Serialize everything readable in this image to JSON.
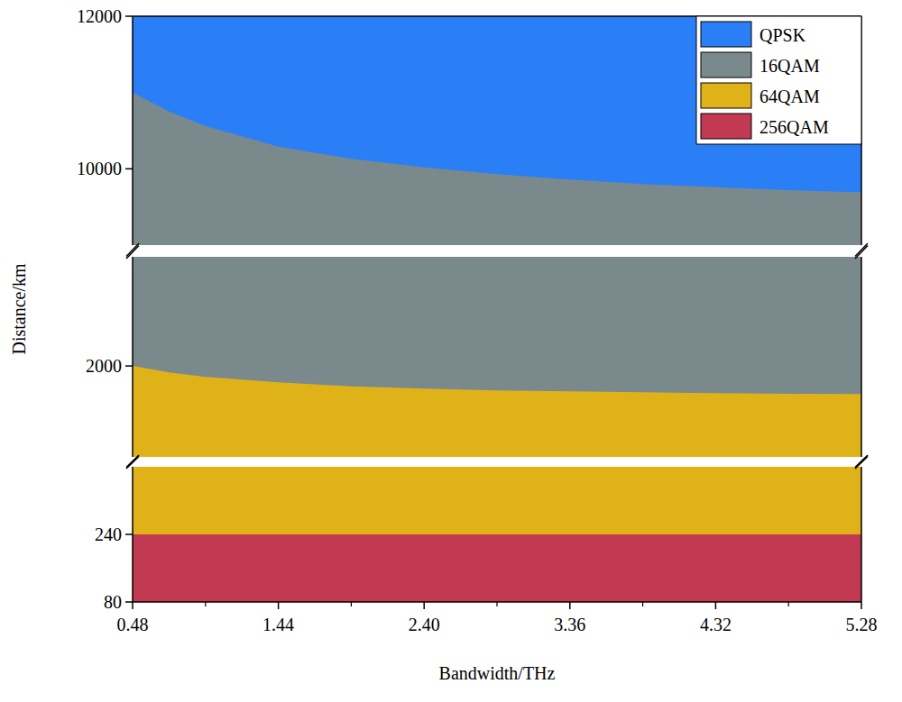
{
  "chart_data": {
    "type": "area",
    "x_label": "Bandwidth/THz",
    "y_label": "Distance/km",
    "x": [
      0.48,
      0.72,
      0.96,
      1.44,
      1.92,
      2.4,
      2.88,
      3.36,
      3.84,
      4.32,
      4.8,
      5.28
    ],
    "series": [
      {
        "name": "QPSK",
        "color": "#2b7ff6",
        "values": [
          12000,
          12000,
          12000,
          12000,
          12000,
          12000,
          12000,
          12000,
          12000,
          12000,
          12000,
          12000
        ]
      },
      {
        "name": "16QAM",
        "color": "#7a8a8c",
        "values": [
          11000,
          10750,
          10560,
          10290,
          10130,
          10020,
          9930,
          9860,
          9800,
          9760,
          9720,
          9690
        ]
      },
      {
        "name": "64QAM",
        "color": "#e0b21a",
        "values": [
          2000,
          1965,
          1940,
          1910,
          1888,
          1875,
          1866,
          1860,
          1855,
          1850,
          1847,
          1845
        ]
      },
      {
        "name": "256QAM",
        "color": "#c23a52",
        "values": [
          240,
          240,
          240,
          240,
          240,
          240,
          240,
          240,
          240,
          240,
          240,
          240
        ]
      }
    ],
    "xlim": [
      0.48,
      5.28
    ],
    "xticks": [
      0.48,
      1.44,
      {
        "value": 2.4,
        "label": "2.40"
      },
      3.36,
      4.32,
      5.28
    ],
    "ylim": [
      [
        9000,
        12000
      ],
      [
        1500,
        2600
      ],
      [
        80,
        400
      ]
    ],
    "yticks": [
      80,
      240,
      2000,
      10000,
      12000
    ],
    "legend": "upper right",
    "grid": false
  }
}
